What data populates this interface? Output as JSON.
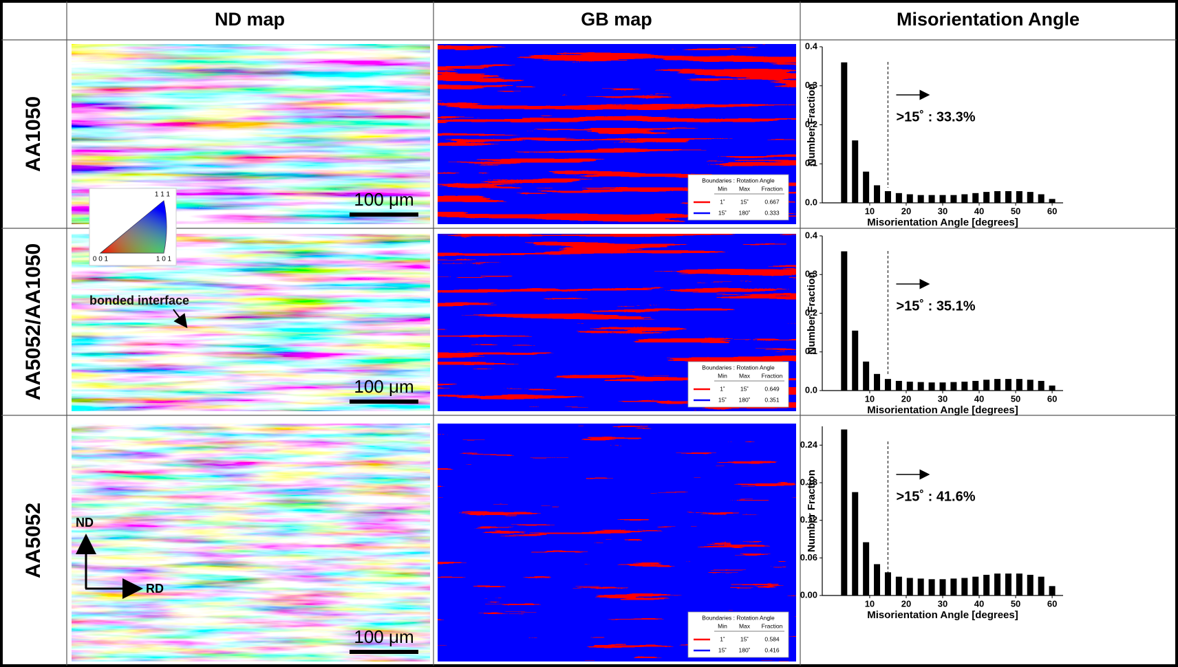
{
  "table": {
    "header": [
      "ND map",
      "GB map",
      "Misorientation Angle"
    ],
    "gb_colors": [
      "#ff0000",
      "#0000ff"
    ],
    "rows": [
      {
        "label": "AA1050",
        "nd_map": {
          "scale_bar": "100 μm",
          "ipf_labels": [
            "1 1 1",
            "0 0 1",
            "1 0 1"
          ]
        },
        "gb_map": {
          "legend_title": "Boundaries : Rotation Angle",
          "legend_header": [
            "Min",
            "Max",
            "Fraction"
          ],
          "legend_rows": [
            [
              "1˚",
              "15˚",
              "0.667"
            ],
            [
              "15˚",
              "180˚",
              "0.333"
            ]
          ]
        }
      },
      {
        "label": "AA5052/AA1050",
        "nd_map": {
          "scale_bar": "100 μm",
          "annotation": "bonded interface"
        },
        "gb_map": {
          "legend_title": "Boundaries : Rotation Angle",
          "legend_header": [
            "Min",
            "Max",
            "Fraction"
          ],
          "legend_rows": [
            [
              "1˚",
              "15˚",
              "0.649"
            ],
            [
              "15˚",
              "180˚",
              "0.351"
            ]
          ]
        }
      },
      {
        "label": "AA5052",
        "nd_map": {
          "scale_bar": "100 μm",
          "axes": [
            "ND",
            "RD"
          ]
        },
        "gb_map": {
          "legend_title": "Boundaries : Rotation Angle",
          "legend_header": [
            "Min",
            "Max",
            "Fraction"
          ],
          "legend_rows": [
            [
              "1˚",
              "15˚",
              "0.584"
            ],
            [
              "15˚",
              "180˚",
              "0.416"
            ]
          ]
        }
      }
    ]
  },
  "chart_data": [
    {
      "type": "bar",
      "x": [
        3,
        6,
        9,
        12,
        15,
        18,
        21,
        24,
        27,
        30,
        33,
        36,
        39,
        42,
        45,
        48,
        51,
        54,
        57,
        60
      ],
      "values": [
        0.36,
        0.16,
        0.08,
        0.045,
        0.03,
        0.025,
        0.022,
        0.02,
        0.02,
        0.02,
        0.02,
        0.022,
        0.025,
        0.028,
        0.03,
        0.03,
        0.03,
        0.028,
        0.022,
        0.01
      ],
      "color": "#000000",
      "xlim": [
        -3,
        63
      ],
      "xticks": [
        10,
        20,
        30,
        40,
        50,
        60
      ],
      "ylim": [
        0,
        0.4
      ],
      "yticks": [
        {
          "value": 0,
          "label": "0.0"
        },
        0.1,
        0.2,
        0.3,
        0.4
      ],
      "xlabel": "Misorientation Angle [degrees]",
      "ylabel": "Number Fraction",
      "threshold": 15,
      "annotation": ">15˚ : 33.3%"
    },
    {
      "type": "bar",
      "x": [
        3,
        6,
        9,
        12,
        15,
        18,
        21,
        24,
        27,
        30,
        33,
        36,
        39,
        42,
        45,
        48,
        51,
        54,
        57,
        60
      ],
      "values": [
        0.36,
        0.155,
        0.075,
        0.043,
        0.03,
        0.025,
        0.023,
        0.022,
        0.021,
        0.021,
        0.022,
        0.023,
        0.025,
        0.028,
        0.03,
        0.03,
        0.03,
        0.028,
        0.025,
        0.013
      ],
      "color": "#000000",
      "xlim": [
        -3,
        63
      ],
      "xticks": [
        10,
        20,
        30,
        40,
        50,
        60
      ],
      "ylim": [
        0,
        0.4
      ],
      "yticks": [
        {
          "value": 0,
          "label": "0.0"
        },
        0.1,
        0.2,
        0.3,
        0.4
      ],
      "xlabel": "Misorientation Angle [degrees]",
      "ylabel": "Number Fraction",
      "threshold": 15,
      "annotation": ">15˚ : 35.1%"
    },
    {
      "type": "bar",
      "x": [
        3,
        6,
        9,
        12,
        15,
        18,
        21,
        24,
        27,
        30,
        33,
        36,
        39,
        42,
        45,
        48,
        51,
        54,
        57,
        60
      ],
      "values": [
        0.265,
        0.165,
        0.085,
        0.05,
        0.037,
        0.03,
        0.028,
        0.027,
        0.026,
        0.026,
        0.027,
        0.028,
        0.03,
        0.033,
        0.035,
        0.035,
        0.035,
        0.033,
        0.03,
        0.015
      ],
      "color": "#000000",
      "xlim": [
        -3,
        63
      ],
      "xticks": [
        10,
        20,
        30,
        40,
        50,
        60
      ],
      "ylim": [
        0,
        0.27
      ],
      "yticks": [
        {
          "value": 0,
          "label": "0.00"
        },
        0.06,
        0.12,
        0.18,
        0.24
      ],
      "xlabel": "Misorientation Angle [degrees]",
      "ylabel": "Number Fraction",
      "threshold": 15,
      "annotation": ">15˚ : 41.6%"
    }
  ]
}
